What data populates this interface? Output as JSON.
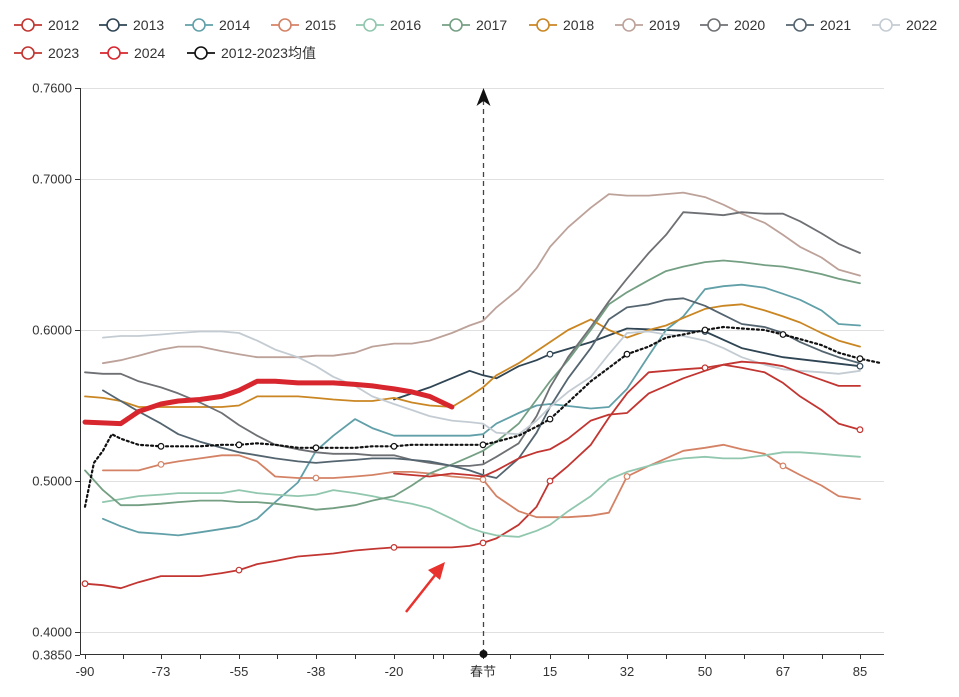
{
  "chart_data": {
    "type": "line",
    "title": "",
    "xlabel": "",
    "ylabel": "",
    "x_tick_labels": [
      "-90",
      "-73",
      "-55",
      "-38",
      "-20",
      "春节",
      "15",
      "32",
      "50",
      "67",
      "85"
    ],
    "x_tick_values": [
      -90,
      -73,
      -55,
      -38,
      -20,
      0,
      15,
      32,
      50,
      67,
      85
    ],
    "xlim": [
      -90,
      90
    ],
    "y_tick_labels": [
      "0.3850",
      "0.4000",
      "0.5000",
      "0.6000",
      "0.7000",
      "0.7600"
    ],
    "y_tick_values": [
      0.385,
      0.4,
      0.5,
      0.6,
      0.7,
      0.76
    ],
    "ylim": [
      0.385,
      0.76
    ],
    "marker_line_x": 0,
    "grid": "horizontal",
    "legend_position": "top",
    "series": [
      {
        "name": "2012",
        "color": "#c23531",
        "marker_x": [
          -90,
          -55,
          -20,
          0,
          15,
          50,
          85
        ],
        "x": [
          -90,
          -86,
          -82,
          -78,
          -73,
          -69,
          -64,
          -59,
          -55,
          -51,
          -47,
          -42,
          -38,
          -34,
          -29,
          -25,
          -20,
          -16,
          -12,
          -7,
          -3,
          0,
          3,
          8,
          12,
          15,
          19,
          24,
          28,
          32,
          37,
          41,
          45,
          50,
          54,
          58,
          63,
          67,
          71,
          76,
          80,
          85
        ],
        "values": [
          0.432,
          0.431,
          0.429,
          0.433,
          0.437,
          0.437,
          0.437,
          0.439,
          0.441,
          0.445,
          0.447,
          0.45,
          0.451,
          0.452,
          0.454,
          0.455,
          0.456,
          0.456,
          0.456,
          0.456,
          0.457,
          0.459,
          0.462,
          0.471,
          0.483,
          0.5,
          0.51,
          0.524,
          0.542,
          0.558,
          0.572,
          0.573,
          0.574,
          0.575,
          0.577,
          0.575,
          0.572,
          0.565,
          0.556,
          0.547,
          0.538,
          0.534
        ]
      },
      {
        "name": "2013",
        "color": "#2f4554",
        "marker_x": [
          15,
          50,
          85
        ],
        "x": [
          -20,
          -12,
          -3,
          0,
          3,
          8,
          12,
          15,
          24,
          32,
          41,
          50,
          58,
          67,
          76,
          85
        ],
        "values": [
          0.554,
          0.562,
          0.573,
          0.57,
          0.568,
          0.576,
          0.58,
          0.584,
          0.592,
          0.601,
          0.6,
          0.599,
          0.588,
          0.582,
          0.579,
          0.576
        ]
      },
      {
        "name": "2014",
        "color": "#61a0a8",
        "marker_x": [],
        "x": [
          -86,
          -82,
          -78,
          -73,
          -69,
          -64,
          -55,
          -51,
          -47,
          -42,
          -38,
          -34,
          -29,
          -25,
          -20,
          -16,
          -12,
          -7,
          -3,
          0,
          3,
          8,
          12,
          15,
          24,
          28,
          32,
          37,
          41,
          45,
          50,
          54,
          58,
          63,
          67,
          71,
          76,
          80,
          85
        ],
        "values": [
          0.475,
          0.47,
          0.466,
          0.465,
          0.464,
          0.466,
          0.47,
          0.475,
          0.486,
          0.499,
          0.52,
          0.53,
          0.541,
          0.535,
          0.53,
          0.53,
          0.53,
          0.53,
          0.53,
          0.531,
          0.538,
          0.545,
          0.55,
          0.551,
          0.548,
          0.549,
          0.561,
          0.583,
          0.6,
          0.609,
          0.627,
          0.629,
          0.63,
          0.628,
          0.624,
          0.62,
          0.613,
          0.604,
          0.603
        ]
      },
      {
        "name": "2015",
        "color": "#d48265",
        "marker_x": [
          -73,
          -38,
          0,
          32,
          67
        ],
        "x": [
          -86,
          -82,
          -78,
          -73,
          -69,
          -64,
          -59,
          -55,
          -51,
          -47,
          -42,
          -38,
          -34,
          -29,
          -25,
          -20,
          -16,
          -12,
          -7,
          -3,
          0,
          3,
          8,
          12,
          15,
          19,
          24,
          28,
          32,
          37,
          41,
          45,
          50,
          54,
          58,
          63,
          67,
          71,
          76,
          80,
          85
        ],
        "values": [
          0.507,
          0.507,
          0.507,
          0.511,
          0.513,
          0.515,
          0.517,
          0.517,
          0.513,
          0.503,
          0.502,
          0.502,
          0.502,
          0.503,
          0.504,
          0.506,
          0.506,
          0.505,
          0.503,
          0.502,
          0.501,
          0.49,
          0.48,
          0.476,
          0.476,
          0.476,
          0.477,
          0.479,
          0.503,
          0.51,
          0.515,
          0.52,
          0.522,
          0.524,
          0.521,
          0.518,
          0.51,
          0.504,
          0.497,
          0.49,
          0.488
        ]
      },
      {
        "name": "2016",
        "color": "#91c7ae",
        "marker_x": [],
        "x": [
          -86,
          -82,
          -78,
          -73,
          -69,
          -64,
          -59,
          -55,
          -51,
          -47,
          -42,
          -38,
          -34,
          -29,
          -25,
          -20,
          -16,
          -12,
          -7,
          -3,
          0,
          3,
          8,
          12,
          15,
          19,
          24,
          28,
          32,
          37,
          41,
          45,
          50,
          54,
          58,
          63,
          67,
          71,
          76,
          80,
          85
        ],
        "values": [
          0.486,
          0.488,
          0.49,
          0.491,
          0.492,
          0.492,
          0.492,
          0.494,
          0.492,
          0.491,
          0.49,
          0.491,
          0.494,
          0.492,
          0.49,
          0.487,
          0.485,
          0.482,
          0.475,
          0.469,
          0.466,
          0.464,
          0.463,
          0.467,
          0.471,
          0.48,
          0.49,
          0.501,
          0.506,
          0.51,
          0.513,
          0.515,
          0.516,
          0.515,
          0.515,
          0.517,
          0.519,
          0.519,
          0.518,
          0.517,
          0.516
        ]
      },
      {
        "name": "2017",
        "color": "#749f83",
        "marker_x": [],
        "x": [
          -90,
          -86,
          -82,
          -78,
          -73,
          -69,
          -64,
          -59,
          -55,
          -51,
          -47,
          -42,
          -38,
          -34,
          -29,
          -25,
          -20,
          -16,
          -12,
          -7,
          -3,
          0,
          3,
          8,
          12,
          15,
          19,
          24,
          28,
          32,
          37,
          41,
          45,
          50,
          54,
          58,
          63,
          67,
          71,
          76,
          80,
          85
        ],
        "values": [
          0.507,
          0.494,
          0.484,
          0.484,
          0.485,
          0.486,
          0.487,
          0.487,
          0.486,
          0.486,
          0.485,
          0.483,
          0.481,
          0.482,
          0.484,
          0.487,
          0.49,
          0.497,
          0.505,
          0.511,
          0.516,
          0.52,
          0.526,
          0.538,
          0.554,
          0.566,
          0.58,
          0.6,
          0.617,
          0.625,
          0.633,
          0.639,
          0.642,
          0.645,
          0.646,
          0.645,
          0.643,
          0.642,
          0.64,
          0.637,
          0.634,
          0.631
        ]
      },
      {
        "name": "2018",
        "color": "#ca8622",
        "marker_x": [],
        "x": [
          -90,
          -86,
          -82,
          -78,
          -73,
          -69,
          -64,
          -59,
          -55,
          -51,
          -47,
          -42,
          -38,
          -34,
          -29,
          -25,
          -20,
          -16,
          -12,
          -7,
          -3,
          0,
          3,
          8,
          12,
          15,
          19,
          24,
          28,
          32,
          37,
          41,
          45,
          50,
          54,
          58,
          63,
          67,
          71,
          76,
          80,
          85
        ],
        "values": [
          0.556,
          0.555,
          0.553,
          0.549,
          0.549,
          0.549,
          0.549,
          0.549,
          0.55,
          0.556,
          0.556,
          0.556,
          0.555,
          0.554,
          0.553,
          0.553,
          0.555,
          0.552,
          0.55,
          0.549,
          0.556,
          0.562,
          0.57,
          0.578,
          0.586,
          0.592,
          0.6,
          0.607,
          0.6,
          0.595,
          0.6,
          0.603,
          0.608,
          0.614,
          0.616,
          0.617,
          0.613,
          0.609,
          0.605,
          0.598,
          0.593,
          0.589
        ]
      },
      {
        "name": "2019",
        "color": "#bda29a",
        "marker_x": [],
        "x": [
          -86,
          -82,
          -78,
          -73,
          -69,
          -64,
          -59,
          -55,
          -51,
          -47,
          -42,
          -38,
          -34,
          -29,
          -25,
          -20,
          -16,
          -12,
          -7,
          -3,
          0,
          3,
          8,
          12,
          15,
          19,
          24,
          28,
          32,
          37,
          41,
          45,
          50,
          54,
          58,
          63,
          67,
          71,
          76,
          80,
          85
        ],
        "values": [
          0.578,
          0.58,
          0.583,
          0.587,
          0.589,
          0.589,
          0.586,
          0.584,
          0.582,
          0.582,
          0.582,
          0.583,
          0.583,
          0.585,
          0.589,
          0.591,
          0.591,
          0.593,
          0.598,
          0.603,
          0.606,
          0.615,
          0.627,
          0.641,
          0.655,
          0.668,
          0.681,
          0.69,
          0.689,
          0.689,
          0.69,
          0.691,
          0.688,
          0.683,
          0.677,
          0.671,
          0.663,
          0.655,
          0.648,
          0.64,
          0.636
        ]
      },
      {
        "name": "2020",
        "color": "#6e7074",
        "marker_x": [],
        "x": [
          -90,
          -86,
          -82,
          -78,
          -73,
          -69,
          -64,
          -59,
          -55,
          -51,
          -47,
          -42,
          -38,
          -34,
          -29,
          -25,
          -20,
          -16,
          -12,
          -7,
          -3,
          0,
          3,
          8,
          12,
          15,
          19,
          24,
          28,
          32,
          37,
          41,
          45,
          50,
          54,
          58,
          63,
          67,
          71,
          76,
          80,
          85
        ],
        "values": [
          0.572,
          0.571,
          0.571,
          0.566,
          0.562,
          0.558,
          0.552,
          0.545,
          0.537,
          0.53,
          0.524,
          0.521,
          0.519,
          0.518,
          0.518,
          0.517,
          0.517,
          0.514,
          0.512,
          0.51,
          0.51,
          0.511,
          0.516,
          0.525,
          0.543,
          0.562,
          0.582,
          0.602,
          0.619,
          0.634,
          0.651,
          0.663,
          0.678,
          0.677,
          0.676,
          0.678,
          0.677,
          0.677,
          0.672,
          0.664,
          0.657,
          0.651
        ]
      },
      {
        "name": "2021",
        "color": "#546570",
        "marker_x": [],
        "x": [
          -86,
          -82,
          -78,
          -73,
          -69,
          -64,
          -59,
          -55,
          -51,
          -47,
          -42,
          -38,
          -34,
          -29,
          -25,
          -20,
          -16,
          -12,
          -7,
          -3,
          0,
          3,
          8,
          12,
          15,
          19,
          24,
          28,
          32,
          37,
          41,
          45,
          50,
          54,
          58,
          63,
          67,
          71,
          76,
          80,
          85
        ],
        "values": [
          0.56,
          0.553,
          0.546,
          0.538,
          0.531,
          0.526,
          0.522,
          0.519,
          0.517,
          0.515,
          0.513,
          0.512,
          0.513,
          0.514,
          0.515,
          0.515,
          0.514,
          0.513,
          0.51,
          0.507,
          0.504,
          0.502,
          0.515,
          0.532,
          0.549,
          0.568,
          0.588,
          0.607,
          0.615,
          0.617,
          0.62,
          0.621,
          0.616,
          0.61,
          0.604,
          0.602,
          0.598,
          0.592,
          0.586,
          0.582,
          0.578
        ]
      },
      {
        "name": "2022",
        "color": "#c4ccd3",
        "marker_x": [],
        "x": [
          -86,
          -82,
          -78,
          -73,
          -69,
          -64,
          -59,
          -55,
          -51,
          -47,
          -42,
          -38,
          -34,
          -29,
          -25,
          -20,
          -16,
          -12,
          -7,
          -3,
          0,
          3,
          8,
          12,
          15,
          19,
          24,
          28,
          32,
          37,
          41,
          45,
          50,
          54,
          58,
          63,
          67,
          71,
          76,
          80,
          85
        ],
        "values": [
          0.595,
          0.596,
          0.596,
          0.597,
          0.598,
          0.599,
          0.599,
          0.598,
          0.593,
          0.587,
          0.582,
          0.576,
          0.569,
          0.563,
          0.556,
          0.551,
          0.547,
          0.543,
          0.54,
          0.539,
          0.538,
          0.532,
          0.531,
          0.54,
          0.549,
          0.559,
          0.569,
          0.584,
          0.598,
          0.599,
          0.597,
          0.596,
          0.593,
          0.588,
          0.582,
          0.577,
          0.574,
          0.573,
          0.572,
          0.571,
          0.573
        ]
      },
      {
        "name": "2023",
        "color": "#c23531",
        "marker_x": [],
        "x": [
          -20,
          -16,
          -12,
          -7,
          -3,
          0,
          3,
          8,
          12,
          15,
          19,
          24,
          28,
          32,
          37,
          41,
          45,
          50,
          54,
          58,
          63,
          67,
          71,
          76,
          80,
          85
        ],
        "values": [
          0.505,
          0.504,
          0.503,
          0.505,
          0.504,
          0.503,
          0.507,
          0.515,
          0.519,
          0.521,
          0.528,
          0.54,
          0.544,
          0.545,
          0.558,
          0.563,
          0.568,
          0.573,
          0.577,
          0.579,
          0.578,
          0.576,
          0.572,
          0.567,
          0.563,
          0.563
        ]
      },
      {
        "name": "2024",
        "color": "#d7262e",
        "marker_x": [],
        "x": [
          -90,
          -82,
          -78,
          -73,
          -69,
          -64,
          -59,
          -55,
          -51,
          -47,
          -42,
          -38,
          -34,
          -29,
          -25,
          -20,
          -16,
          -12,
          -7
        ],
        "values": [
          0.539,
          0.538,
          0.546,
          0.551,
          0.553,
          0.554,
          0.556,
          0.56,
          0.566,
          0.566,
          0.565,
          0.565,
          0.565,
          0.564,
          0.563,
          0.561,
          0.559,
          0.556,
          0.549
        ]
      },
      {
        "name": "2012-2023均值",
        "color": "#111111",
        "marker_x": [
          -73,
          -55,
          -38,
          -20,
          0,
          15,
          32,
          50,
          67,
          85
        ],
        "x": [
          -90,
          -88,
          -86,
          -84,
          -82,
          -78,
          -73,
          -69,
          -64,
          -59,
          -55,
          -51,
          -47,
          -42,
          -38,
          -34,
          -29,
          -25,
          -20,
          -16,
          -12,
          -7,
          -3,
          0,
          3,
          8,
          12,
          15,
          19,
          24,
          28,
          32,
          37,
          41,
          45,
          50,
          54,
          58,
          63,
          67,
          71,
          76,
          80,
          85,
          90
        ],
        "values": [
          0.483,
          0.512,
          0.52,
          0.531,
          0.528,
          0.524,
          0.523,
          0.523,
          0.523,
          0.524,
          0.524,
          0.525,
          0.524,
          0.522,
          0.522,
          0.522,
          0.522,
          0.523,
          0.523,
          0.524,
          0.524,
          0.524,
          0.524,
          0.524,
          0.526,
          0.53,
          0.536,
          0.541,
          0.552,
          0.566,
          0.575,
          0.584,
          0.589,
          0.595,
          0.597,
          0.6,
          0.602,
          0.601,
          0.6,
          0.597,
          0.594,
          0.59,
          0.585,
          0.581,
          0.578
        ]
      }
    ]
  }
}
